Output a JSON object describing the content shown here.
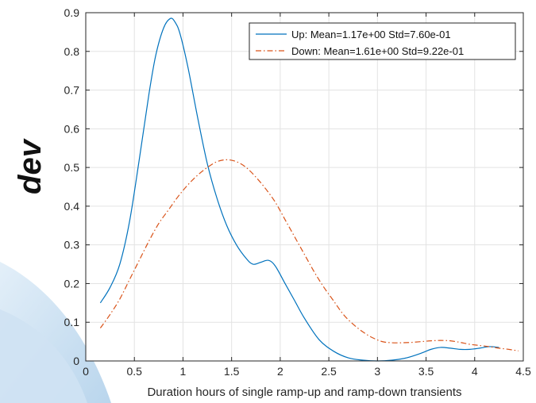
{
  "side_label": "dev",
  "colors": {
    "series_up": "#0072BD",
    "series_down": "#D95319",
    "axes_bg": "#ffffff",
    "grid": "#e3e3e3",
    "axis": "#262626"
  },
  "chart_data": {
    "type": "line",
    "title": "",
    "xlabel": "Duration hours of single ramp-up and ramp-down transients",
    "ylabel": "",
    "xlim": [
      0,
      4.5
    ],
    "ylim": [
      0,
      0.9
    ],
    "xticks": [
      0,
      0.5,
      1,
      1.5,
      2,
      2.5,
      3,
      3.5,
      4,
      4.5
    ],
    "xtick_labels": [
      "0",
      "0.5",
      "1",
      "1.5",
      "2",
      "2.5",
      "3",
      "3.5",
      "4",
      "4.5"
    ],
    "yticks": [
      0,
      0.1,
      0.2,
      0.3,
      0.4,
      0.5,
      0.6,
      0.7,
      0.8,
      0.9
    ],
    "ytick_labels": [
      "0",
      "0.1",
      "0.2",
      "0.3",
      "0.4",
      "0.5",
      "0.6",
      "0.7",
      "0.8",
      "0.9"
    ],
    "grid": true,
    "legend_position": "top-right",
    "series": [
      {
        "name": "Up: Mean=1.17e+00 Std=7.60e-01",
        "style": "solid",
        "x": [
          0.15,
          0.25,
          0.35,
          0.45,
          0.55,
          0.65,
          0.72,
          0.8,
          0.87,
          0.92,
          0.97,
          1.05,
          1.15,
          1.25,
          1.35,
          1.45,
          1.55,
          1.65,
          1.72,
          1.8,
          1.88,
          1.95,
          2.05,
          2.15,
          2.25,
          2.4,
          2.55,
          2.7,
          2.85,
          3.0,
          3.15,
          3.3,
          3.45,
          3.55,
          3.65,
          3.75,
          3.85,
          3.95,
          4.05,
          4.15,
          4.25
        ],
        "y": [
          0.15,
          0.19,
          0.25,
          0.36,
          0.52,
          0.69,
          0.79,
          0.86,
          0.885,
          0.875,
          0.845,
          0.76,
          0.63,
          0.51,
          0.42,
          0.35,
          0.3,
          0.265,
          0.25,
          0.255,
          0.26,
          0.245,
          0.2,
          0.155,
          0.11,
          0.055,
          0.025,
          0.008,
          0.002,
          0.0,
          0.002,
          0.008,
          0.02,
          0.03,
          0.035,
          0.033,
          0.03,
          0.03,
          0.033,
          0.037,
          0.035
        ]
      },
      {
        "name": "Down: Mean=1.61e+00 Std=9.22e-01",
        "style": "dashdot",
        "x": [
          0.15,
          0.25,
          0.35,
          0.45,
          0.55,
          0.65,
          0.75,
          0.85,
          0.95,
          1.05,
          1.15,
          1.25,
          1.35,
          1.45,
          1.55,
          1.65,
          1.75,
          1.85,
          1.95,
          2.05,
          2.15,
          2.25,
          2.35,
          2.45,
          2.55,
          2.65,
          2.75,
          2.85,
          2.95,
          3.05,
          3.15,
          3.25,
          3.35,
          3.45,
          3.55,
          3.65,
          3.75,
          3.85,
          3.95,
          4.05,
          4.15,
          4.25,
          4.35,
          4.45
        ],
        "y": [
          0.085,
          0.12,
          0.16,
          0.21,
          0.26,
          0.31,
          0.355,
          0.39,
          0.425,
          0.455,
          0.48,
          0.5,
          0.515,
          0.52,
          0.515,
          0.5,
          0.475,
          0.445,
          0.41,
          0.365,
          0.32,
          0.275,
          0.23,
          0.19,
          0.155,
          0.12,
          0.095,
          0.075,
          0.06,
          0.05,
          0.047,
          0.047,
          0.048,
          0.05,
          0.052,
          0.053,
          0.052,
          0.048,
          0.043,
          0.04,
          0.037,
          0.033,
          0.03,
          0.026
        ]
      }
    ]
  }
}
